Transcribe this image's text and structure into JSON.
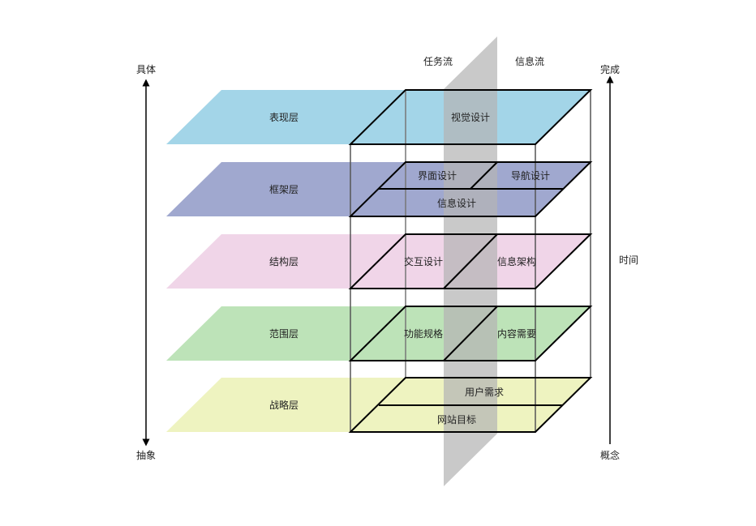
{
  "axis_left": {
    "top": "具体",
    "bottom": "抽象"
  },
  "axis_right": {
    "top": "完成",
    "bottom": "概念",
    "middle": "时间"
  },
  "flows": {
    "task": "任务流",
    "info": "信息流"
  },
  "colors": {
    "surface": "#a3d5e8",
    "skeleton": "#a0a8cf",
    "structure": "#f0d5e8",
    "scope": "#bde3b8",
    "strategy": "#eef3c0",
    "divider": "#b4b4b4"
  },
  "layers": [
    {
      "name": "表现层",
      "items": [
        "视觉设计"
      ]
    },
    {
      "name": "框架层",
      "items": [
        "界面设计",
        "导航设计",
        "信息设计"
      ]
    },
    {
      "name": "结构层",
      "items": [
        "交互设计",
        "信息架构"
      ]
    },
    {
      "name": "范围层",
      "items": [
        "功能规格",
        "内容需要"
      ]
    },
    {
      "name": "战略层",
      "items": [
        "用户需求",
        "网站目标"
      ]
    }
  ]
}
